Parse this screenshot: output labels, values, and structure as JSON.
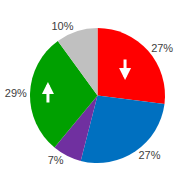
{
  "chart_data": {
    "type": "pie",
    "values": [
      27,
      27,
      7,
      29,
      10
    ],
    "value_labels": [
      "27%",
      "27%",
      "7%",
      "29%",
      "10%"
    ],
    "colors": [
      "#ff0000",
      "#0070c0",
      "#7030a0",
      "#00a000",
      "#c0c0c0"
    ],
    "data_labels": true
  }
}
